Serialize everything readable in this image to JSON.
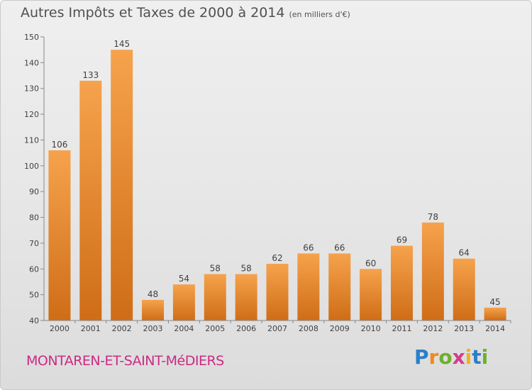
{
  "title": {
    "main": "Autres Impôts et Taxes de 2000 à 2014",
    "unit": "(en milliers d'€)"
  },
  "chart_data": {
    "type": "bar",
    "title": "Autres Impôts et Taxes de 2000 à 2014",
    "subtitle": "(en milliers d'€)",
    "xlabel": "",
    "ylabel": "",
    "categories": [
      "2000",
      "2001",
      "2002",
      "2003",
      "2004",
      "2005",
      "2006",
      "2007",
      "2008",
      "2009",
      "2010",
      "2011",
      "2012",
      "2013",
      "2014"
    ],
    "values": [
      106,
      133,
      145,
      48,
      54,
      58,
      58,
      62,
      66,
      66,
      60,
      69,
      78,
      64,
      45
    ],
    "ylim": [
      40,
      150
    ],
    "yticks": [
      40,
      50,
      60,
      70,
      80,
      90,
      100,
      110,
      120,
      130,
      140,
      150
    ],
    "grid": false,
    "bar_color": "#f09a3e"
  },
  "footer": {
    "city": "MONTAREN-ET-SAINT-MéDIERS",
    "city_color": "#cc2a84"
  },
  "logo": {
    "letters": [
      "P",
      "r",
      "o",
      "x",
      "i",
      "t",
      "i"
    ],
    "colors": [
      "#2a7fc9",
      "#f08a1c",
      "#6cb02c",
      "#d23c8c",
      "#f0b21c",
      "#2a7fc9",
      "#6cb02c"
    ]
  }
}
